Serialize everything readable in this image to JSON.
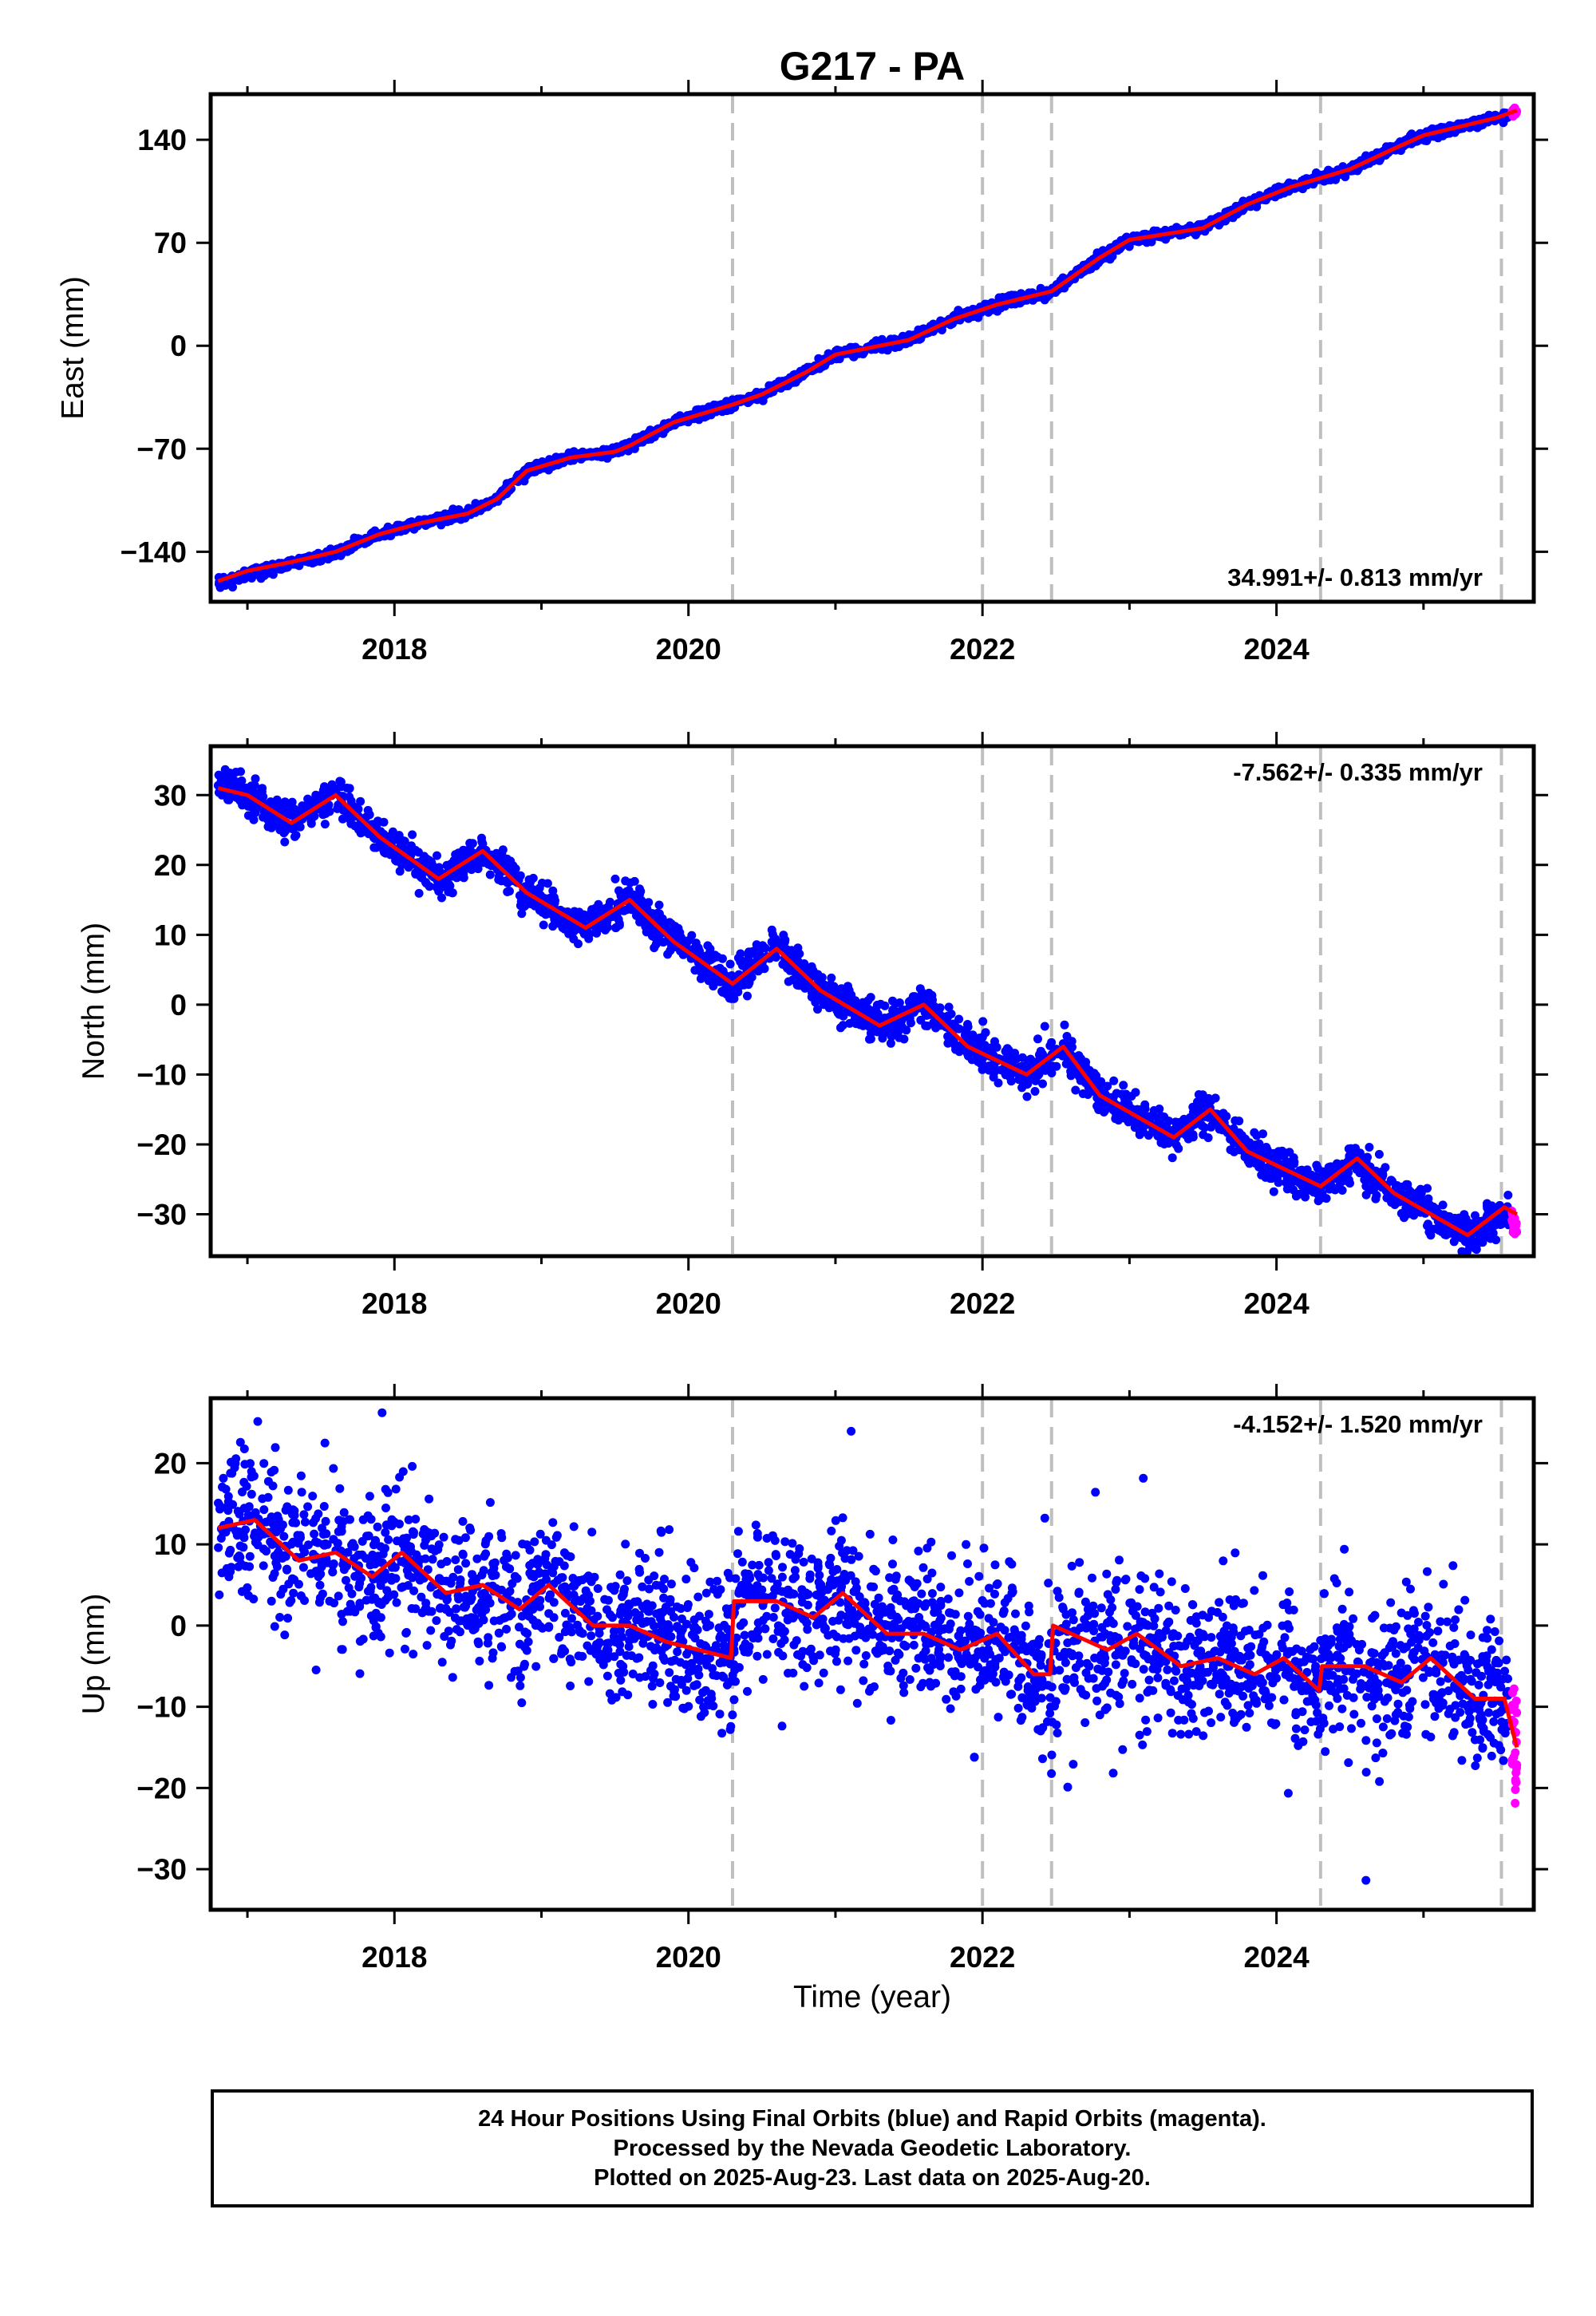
{
  "chart_data": {
    "title": "G217 - PA",
    "xlabel": "Time (year)",
    "xlim": [
      2016.75,
      2025.75
    ],
    "x_ticks": [
      2018,
      2020,
      2022,
      2024
    ],
    "x_tick_labels": [
      "2018",
      "2020",
      "2022",
      "2024"
    ],
    "event_lines": [
      2020.3,
      2022.0,
      2022.47,
      2024.3,
      2025.53
    ],
    "last_data": 2025.635,
    "rapid_start": 2025.58,
    "colors": {
      "final": "#0000ff",
      "rapid": "#ff00ff",
      "model": "#ff0000",
      "event": "#bfbfbf"
    },
    "panels": [
      {
        "type": "scatter",
        "ylabel": "East (mm)",
        "ylim": [
          -174,
          171
        ],
        "y_ticks": [
          -140,
          -70,
          0,
          70,
          140
        ],
        "y_tick_labels": [
          "−140",
          "−70",
          "0",
          "70",
          "140"
        ],
        "rate_label": "34.991+/- 0.813 mm/yr",
        "rate_position": "bottom-right",
        "series": [
          {
            "name": "Final Orbits (blue)",
            "x": [
              2016.8,
              2017.0,
              2017.3,
              2017.6,
              2017.9,
              2018.2,
              2018.5,
              2018.7,
              2018.9,
              2019.2,
              2019.5,
              2019.6,
              2019.9,
              2020.3,
              2020.5,
              2020.8,
              2021.0,
              2021.5,
              2021.8,
              2022.1,
              2022.47,
              2022.8,
              2023.0,
              2023.5,
              2023.8,
              2024.1,
              2024.5,
              2024.8,
              2025.0,
              2025.5
            ],
            "y": [
              -162,
              -155,
              -148,
              -141,
              -128,
              -120,
              -114,
              -104,
              -85,
              -76,
              -72,
              -68,
              -52,
              -40,
              -33,
              -18,
              -6,
              4,
              18,
              28,
              37,
              60,
              72,
              80,
              96,
              108,
              120,
              134,
              143,
              155
            ]
          },
          {
            "name": "Rapid Orbits (magenta)",
            "x": [
              2025.6,
              2025.635
            ],
            "y": [
              158,
              160
            ]
          },
          {
            "name": "model",
            "x": [
              2016.8,
              2017.0,
              2017.3,
              2017.6,
              2017.9,
              2018.2,
              2018.5,
              2018.7,
              2018.9,
              2019.2,
              2019.5,
              2019.6,
              2019.9,
              2020.3,
              2020.5,
              2020.8,
              2021.0,
              2021.5,
              2021.8,
              2022.1,
              2022.47,
              2022.8,
              2023.0,
              2023.5,
              2023.8,
              2024.1,
              2024.5,
              2024.8,
              2025.0,
              2025.5,
              2025.635
            ],
            "y": [
              -160,
              -153,
              -147,
              -140,
              -128,
              -120,
              -114,
              -104,
              -85,
              -76,
              -72,
              -68,
              -52,
              -40,
              -33,
              -18,
              -6,
              4,
              18,
              28,
              37,
              60,
              72,
              80,
              96,
              108,
              120,
              134,
              143,
              155,
              160
            ]
          }
        ]
      },
      {
        "type": "scatter",
        "ylabel": "North (mm)",
        "ylim": [
          -36,
          37
        ],
        "y_ticks": [
          -30,
          -20,
          -10,
          0,
          10,
          20,
          30
        ],
        "y_tick_labels": [
          "−30",
          "−20",
          "−10",
          "0",
          "10",
          "20",
          "30"
        ],
        "rate_label": "-7.562+/- 0.335 mm/yr",
        "rate_position": "top-right",
        "series": [
          {
            "name": "Final Orbits (blue)",
            "x": [
              2016.8,
              2017.0,
              2017.3,
              2017.6,
              2017.9,
              2018.3,
              2018.6,
              2018.9,
              2019.3,
              2019.6,
              2019.9,
              2020.3,
              2020.6,
              2020.9,
              2021.3,
              2021.6,
              2021.9,
              2022.3,
              2022.55,
              2022.8,
              2023.3,
              2023.55,
              2023.8,
              2024.3,
              2024.55,
              2024.8,
              2025.3,
              2025.55
            ],
            "y": [
              32,
              30,
              26,
              30,
              24,
              18,
              22,
              16,
              11,
              15,
              9,
              3,
              8,
              2,
              -3,
              0,
              -6,
              -10,
              -6,
              -13,
              -19,
              -15,
              -21,
              -26,
              -22,
              -27,
              -33,
              -30
            ]
          },
          {
            "name": "Rapid Orbits (magenta)",
            "x": [
              2025.6,
              2025.635
            ],
            "y": [
              -31,
              -32
            ]
          },
          {
            "name": "model",
            "x": [
              2016.8,
              2017.0,
              2017.3,
              2017.6,
              2017.9,
              2018.3,
              2018.6,
              2018.9,
              2019.3,
              2019.6,
              2019.9,
              2020.3,
              2020.6,
              2020.9,
              2021.3,
              2021.6,
              2021.9,
              2022.3,
              2022.55,
              2022.8,
              2023.3,
              2023.55,
              2023.8,
              2024.3,
              2024.55,
              2024.8,
              2025.3,
              2025.55,
              2025.635
            ],
            "y": [
              31,
              30,
              26,
              30,
              24,
              18,
              22,
              16,
              11,
              15,
              9,
              3,
              8,
              2,
              -3,
              0,
              -6,
              -10,
              -6,
              -13,
              -19,
              -15,
              -21,
              -26,
              -22,
              -27,
              -33,
              -29,
              -30
            ]
          }
        ]
      },
      {
        "type": "scatter",
        "ylabel": "Up (mm)",
        "ylim": [
          -35,
          28
        ],
        "y_ticks": [
          -30,
          -20,
          -10,
          0,
          10,
          20
        ],
        "y_tick_labels": [
          "−30",
          "−20",
          "−10",
          "0",
          "10",
          "20"
        ],
        "rate_label": "-4.152+/- 1.520 mm/yr",
        "rate_position": "top-right",
        "series": [
          {
            "name": "Final Orbits (blue)",
            "x": [
              2016.8,
              2017.05,
              2017.35,
              2017.6,
              2017.85,
              2018.05,
              2018.35,
              2018.6,
              2018.85,
              2019.05,
              2019.35,
              2019.6,
              2019.85,
              2020.29,
              2020.35,
              2020.6,
              2020.85,
              2021.05,
              2021.35,
              2021.6,
              2021.85,
              2022.1,
              2022.35,
              2022.47,
              2022.6,
              2022.85,
              2023.05,
              2023.35,
              2023.6,
              2023.85,
              2024.05,
              2024.29,
              2024.35,
              2024.6,
              2024.85,
              2025.05,
              2025.35,
              2025.55
            ],
            "y": [
              12,
              13,
              8,
              9,
              6,
              9,
              4,
              5,
              2,
              5,
              0,
              0,
              -2,
              -4,
              3,
              3,
              1,
              4,
              -1,
              -1,
              -3,
              -1,
              -6,
              -7,
              -1,
              -3,
              -1,
              -5,
              -4,
              -6,
              -4,
              -9,
              -5,
              -5,
              -7,
              -4,
              -9,
              -9
            ]
          },
          {
            "name": "Rapid Orbits (magenta)",
            "x": [
              2025.6,
              2025.635
            ],
            "y": [
              -12,
              -15
            ]
          },
          {
            "name": "model",
            "x": [
              2016.8,
              2017.05,
              2017.35,
              2017.6,
              2017.85,
              2018.05,
              2018.35,
              2018.6,
              2018.85,
              2019.05,
              2019.35,
              2019.6,
              2019.85,
              2020.29,
              2020.31,
              2020.6,
              2020.85,
              2021.05,
              2021.35,
              2021.6,
              2021.85,
              2022.1,
              2022.35,
              2022.46,
              2022.48,
              2022.85,
              2023.05,
              2023.35,
              2023.6,
              2023.85,
              2024.05,
              2024.29,
              2024.31,
              2024.6,
              2024.85,
              2025.05,
              2025.35,
              2025.55,
              2025.635
            ],
            "y": [
              12,
              13,
              8,
              9,
              6,
              9,
              4,
              5,
              2,
              5,
              0,
              0,
              -2,
              -4,
              3,
              3,
              1,
              4,
              -1,
              -1,
              -3,
              -1,
              -6,
              -6,
              0,
              -3,
              -1,
              -5,
              -4,
              -6,
              -4,
              -8,
              -5,
              -5,
              -7,
              -4,
              -9,
              -9,
              -15
            ]
          }
        ]
      }
    ]
  },
  "footer": {
    "line1": "24 Hour Positions Using Final Orbits (blue) and Rapid Orbits (magenta).",
    "line2": "Processed by the Nevada Geodetic Laboratory.",
    "line3": "Plotted on 2025-Aug-23. Last data on 2025-Aug-20."
  }
}
